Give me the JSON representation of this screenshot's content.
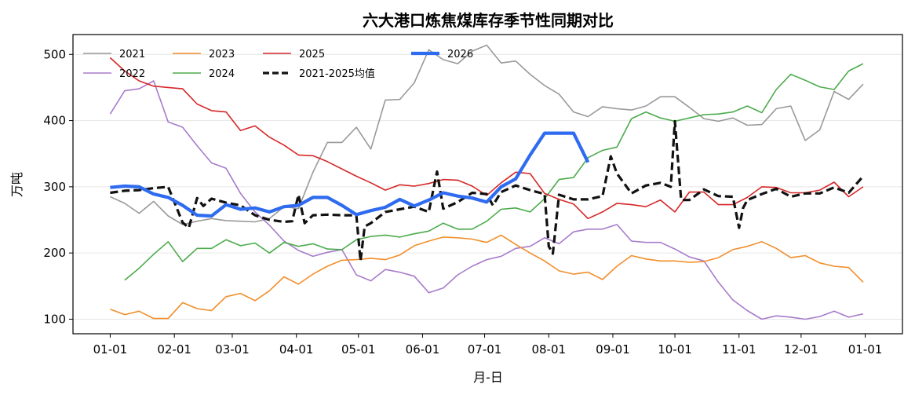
{
  "chart_data": {
    "type": "line",
    "title": "六大港口炼焦煤库存季节性同期对比",
    "xlabel": "月-日",
    "ylabel": "万吨",
    "x_ticks": [
      {
        "label": "01-01",
        "day": 0
      },
      {
        "label": "02-01",
        "day": 31
      },
      {
        "label": "03-01",
        "day": 59
      },
      {
        "label": "04-01",
        "day": 90
      },
      {
        "label": "05-01",
        "day": 120
      },
      {
        "label": "06-01",
        "day": 151
      },
      {
        "label": "07-01",
        "day": 181
      },
      {
        "label": "08-01",
        "day": 212
      },
      {
        "label": "09-01",
        "day": 243
      },
      {
        "label": "10-01",
        "day": 273
      },
      {
        "label": "11-01",
        "day": 304
      },
      {
        "label": "12-01",
        "day": 334
      },
      {
        "label": "01-01",
        "day": 365
      }
    ],
    "xlim": [
      -18,
      383
    ],
    "ylim": [
      78,
      530
    ],
    "y_ticks": [
      100,
      200,
      300,
      400,
      500
    ],
    "grid": "horizontal",
    "legend_position": "top-left",
    "series": [
      {
        "name": "2021",
        "color": "#999999",
        "width": 1.6,
        "dash": "",
        "x": [
          0,
          7,
          14,
          21,
          28,
          35,
          42,
          49,
          56,
          63,
          70,
          77,
          84,
          91,
          98,
          105,
          112,
          119,
          126,
          133,
          140,
          147,
          154,
          161,
          168,
          175,
          182,
          189,
          196,
          203,
          210,
          217,
          224,
          231,
          238,
          245,
          252,
          259,
          266,
          273,
          280,
          287,
          294,
          301,
          308,
          315,
          322,
          329,
          336,
          343,
          350,
          357,
          364
        ],
        "y": [
          285,
          275,
          260,
          278,
          256,
          243,
          248,
          252,
          249,
          248,
          247,
          252,
          270,
          267,
          322,
          367,
          367,
          390,
          357,
          431,
          432,
          457,
          507,
          492,
          486,
          505,
          514,
          487,
          490,
          470,
          453,
          440,
          413,
          406,
          421,
          418,
          416,
          422,
          436,
          436,
          420,
          403,
          399,
          404,
          393,
          394,
          418,
          422,
          370,
          386,
          444,
          432,
          455
        ]
      },
      {
        "name": "2022",
        "color": "#a77bca",
        "width": 1.6,
        "dash": "",
        "x": [
          0,
          7,
          14,
          21,
          28,
          35,
          42,
          49,
          56,
          63,
          70,
          77,
          84,
          91,
          98,
          105,
          112,
          119,
          126,
          133,
          140,
          147,
          154,
          161,
          168,
          175,
          182,
          189,
          196,
          203,
          210,
          217,
          224,
          231,
          238,
          245,
          252,
          259,
          266,
          273,
          280,
          287,
          294,
          301,
          308,
          315,
          322,
          329,
          336,
          343,
          350,
          357,
          364
        ],
        "y": [
          410,
          445,
          448,
          460,
          398,
          390,
          362,
          336,
          328,
          290,
          262,
          242,
          218,
          204,
          195,
          201,
          205,
          167,
          158,
          175,
          171,
          165,
          140,
          147,
          167,
          180,
          190,
          195,
          207,
          210,
          223,
          214,
          232,
          236,
          236,
          243,
          218,
          216,
          216,
          206,
          194,
          188,
          156,
          129,
          113,
          100,
          105,
          103,
          100,
          104,
          112,
          103,
          108
        ]
      },
      {
        "name": "2023",
        "color": "#f28e2b",
        "width": 1.6,
        "dash": "",
        "x": [
          0,
          7,
          14,
          21,
          28,
          35,
          42,
          49,
          56,
          63,
          70,
          77,
          84,
          91,
          98,
          105,
          112,
          119,
          126,
          133,
          140,
          147,
          154,
          161,
          168,
          175,
          182,
          189,
          196,
          203,
          210,
          217,
          224,
          231,
          238,
          245,
          252,
          259,
          266,
          273,
          280,
          287,
          294,
          301,
          308,
          315,
          322,
          329,
          336,
          343,
          350,
          357,
          364
        ],
        "y": [
          115,
          107,
          112,
          101,
          101,
          125,
          116,
          113,
          134,
          139,
          128,
          143,
          164,
          153,
          168,
          180,
          189,
          190,
          192,
          190,
          197,
          211,
          218,
          224,
          223,
          221,
          216,
          227,
          213,
          200,
          188,
          173,
          168,
          171,
          160,
          180,
          196,
          191,
          188,
          188,
          186,
          187,
          193,
          205,
          210,
          217,
          207,
          193,
          196,
          185,
          180,
          178,
          156
        ]
      },
      {
        "name": "2024",
        "color": "#4cab4c",
        "width": 1.6,
        "dash": "",
        "x": [
          7,
          14,
          21,
          28,
          35,
          42,
          49,
          56,
          63,
          70,
          77,
          84,
          91,
          98,
          105,
          112,
          119,
          126,
          133,
          140,
          147,
          154,
          161,
          168,
          175,
          182,
          189,
          196,
          203,
          210,
          217,
          224,
          231,
          238,
          245,
          252,
          259,
          266,
          273,
          280,
          287,
          294,
          301,
          308,
          315,
          322,
          329,
          336,
          343,
          350,
          357,
          364
        ],
        "y": [
          159,
          177,
          198,
          217,
          187,
          207,
          207,
          220,
          211,
          215,
          200,
          216,
          210,
          214,
          206,
          205,
          220,
          225,
          227,
          224,
          229,
          233,
          245,
          236,
          236,
          248,
          266,
          268,
          262,
          282,
          311,
          314,
          344,
          355,
          360,
          403,
          413,
          404,
          399,
          404,
          409,
          410,
          413,
          422,
          412,
          447,
          470,
          461,
          451,
          447,
          475,
          486
        ]
      },
      {
        "name": "2025",
        "color": "#d62728",
        "width": 1.6,
        "dash": "",
        "x": [
          0,
          7,
          14,
          21,
          28,
          35,
          42,
          49,
          56,
          63,
          70,
          77,
          84,
          91,
          98,
          105,
          112,
          119,
          126,
          133,
          140,
          147,
          154,
          161,
          168,
          175,
          182,
          189,
          196,
          203,
          210,
          217,
          224,
          231,
          238,
          245,
          252,
          259,
          266,
          273,
          280,
          287,
          294,
          301,
          308,
          315,
          322,
          329,
          336,
          343,
          350,
          357,
          364
        ],
        "y": [
          495,
          475,
          460,
          452,
          450,
          448,
          425,
          415,
          413,
          385,
          392,
          375,
          363,
          348,
          347,
          338,
          327,
          316,
          306,
          295,
          303,
          301,
          305,
          311,
          310,
          301,
          287,
          306,
          322,
          320,
          290,
          281,
          274,
          252,
          262,
          275,
          273,
          270,
          280,
          262,
          292,
          292,
          273,
          273,
          284,
          300,
          299,
          291,
          291,
          295,
          307,
          285,
          300
        ]
      },
      {
        "name": "2021-2025均值",
        "color": "#111111",
        "width": 3.2,
        "dash": "10 5",
        "x": [
          0,
          7,
          14,
          21,
          28,
          35,
          38,
          42,
          45,
          49,
          56,
          63,
          70,
          77,
          84,
          88,
          91,
          94,
          98,
          105,
          112,
          119,
          121,
          123,
          126,
          133,
          140,
          147,
          154,
          158,
          161,
          168,
          175,
          182,
          185,
          189,
          196,
          203,
          210,
          212,
          214,
          217,
          224,
          231,
          238,
          242,
          245,
          252,
          259,
          266,
          271,
          273,
          276,
          280,
          287,
          294,
          301,
          304,
          306,
          308,
          315,
          322,
          329,
          336,
          343,
          350,
          357,
          364
        ],
        "y": [
          291,
          294,
          295,
          298,
          300,
          246,
          238,
          283,
          271,
          282,
          276,
          272,
          257,
          250,
          247,
          248,
          288,
          245,
          257,
          258,
          257,
          257,
          188,
          240,
          245,
          262,
          266,
          270,
          262,
          323,
          267,
          277,
          291,
          289,
          272,
          292,
          302,
          295,
          289,
          210,
          199,
          288,
          281,
          281,
          286,
          346,
          320,
          290,
          302,
          306,
          300,
          399,
          280,
          280,
          296,
          286,
          285,
          238,
          268,
          280,
          289,
          297,
          285,
          290,
          290,
          299,
          291,
          316
        ]
      },
      {
        "name": "2026",
        "color": "#2f6bf0",
        "width": 4.2,
        "dash": "",
        "x": [
          0,
          7,
          14,
          21,
          28,
          35,
          42,
          49,
          56,
          63,
          70,
          77,
          84,
          91,
          98,
          105,
          112,
          119,
          126,
          133,
          140,
          147,
          154,
          161,
          168,
          175,
          182,
          189,
          196,
          203,
          210,
          217,
          224,
          231
        ],
        "y": [
          299,
          301,
          300,
          289,
          284,
          272,
          257,
          256,
          273,
          266,
          268,
          262,
          270,
          272,
          284,
          284,
          272,
          258,
          264,
          269,
          281,
          271,
          280,
          291,
          286,
          283,
          277,
          300,
          312,
          348,
          381,
          381,
          381,
          337
        ]
      }
    ]
  }
}
